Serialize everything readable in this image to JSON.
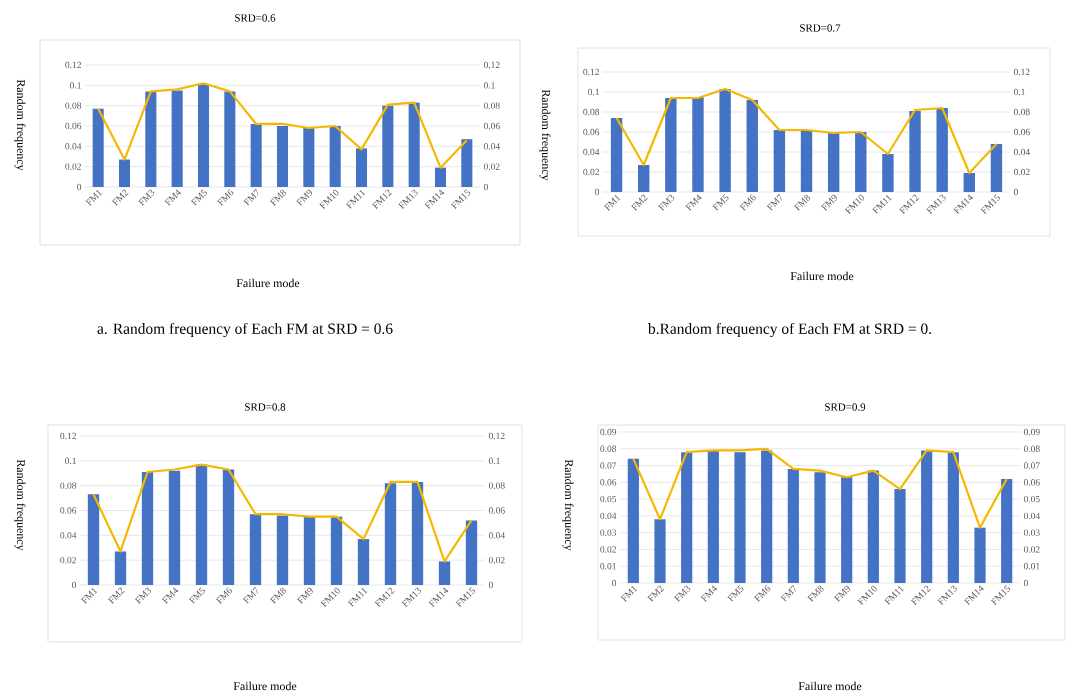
{
  "chart_data": [
    {
      "type": "bar",
      "title": "SRD=0.6",
      "xlabel": "Failure mode",
      "ylabel": "Random frequency",
      "categories": [
        "FM1",
        "FM2",
        "FM3",
        "FM4",
        "FM5",
        "FM6",
        "FM7",
        "FM8",
        "FM9",
        "FM10",
        "FM11",
        "FM12",
        "FM13",
        "FM14",
        "FM15"
      ],
      "series": [
        {
          "color": "#4472c4",
          "values": [
            0.077,
            0.027,
            0.094,
            0.095,
            0.101,
            0.094,
            0.062,
            0.06,
            0.058,
            0.06,
            0.038,
            0.08,
            0.083,
            0.019,
            0.047
          ]
        },
        {
          "type": "line",
          "axis": "y2",
          "color": "#f5b800",
          "values": [
            0.077,
            0.027,
            0.094,
            0.096,
            0.102,
            0.094,
            0.062,
            0.062,
            0.058,
            0.06,
            0.037,
            0.081,
            0.083,
            0.019,
            0.046
          ]
        }
      ],
      "ylim": [
        0,
        0.12
      ],
      "yticks": [
        0,
        0.02,
        0.04,
        0.06,
        0.08,
        0.1,
        0.12
      ],
      "y2lim": [
        0,
        0.12
      ],
      "y2ticks": [
        0,
        0.02,
        0.04,
        0.06,
        0.08,
        0.1,
        0.12
      ],
      "grid": "y",
      "annotations": [
        "a. Random frequency of Each FM at SRD = 0.6"
      ]
    },
    {
      "type": "bar",
      "title": "SRD=0.7",
      "xlabel": "Failure mode",
      "ylabel": "Random frequency",
      "categories": [
        "FM1",
        "FM2",
        "FM3",
        "FM4",
        "FM5",
        "FM6",
        "FM7",
        "FM8",
        "FM9",
        "FM10",
        "FM11",
        "FM12",
        "FM13",
        "FM14",
        "FM15"
      ],
      "series": [
        {
          "color": "#4472c4",
          "values": [
            0.074,
            0.027,
            0.094,
            0.095,
            0.103,
            0.092,
            0.062,
            0.062,
            0.059,
            0.06,
            0.038,
            0.081,
            0.084,
            0.019,
            0.048
          ]
        },
        {
          "type": "line",
          "axis": "y2",
          "color": "#f5b800",
          "values": [
            0.074,
            0.027,
            0.094,
            0.094,
            0.103,
            0.092,
            0.062,
            0.062,
            0.059,
            0.06,
            0.038,
            0.082,
            0.084,
            0.019,
            0.048
          ]
        }
      ],
      "ylim": [
        0,
        0.12
      ],
      "yticks": [
        0,
        0.02,
        0.04,
        0.06,
        0.08,
        0.1,
        0.12
      ],
      "y2lim": [
        0,
        0.12
      ],
      "y2ticks": [
        0,
        0.02,
        0.04,
        0.06,
        0.08,
        0.1,
        0.12
      ],
      "grid": "y",
      "annotations": [
        "b.Random frequency of Each FM at SRD = 0."
      ]
    },
    {
      "type": "bar",
      "title": "SRD=0.8",
      "xlabel": "Failure mode",
      "ylabel": "Random frequency",
      "categories": [
        "FM1",
        "FM2",
        "FM3",
        "FM4",
        "FM5",
        "FM6",
        "FM7",
        "FM8",
        "FM9",
        "FM10",
        "FM11",
        "FM12",
        "FM13",
        "FM14",
        "FM15"
      ],
      "series": [
        {
          "color": "#4472c4",
          "values": [
            0.073,
            0.027,
            0.091,
            0.092,
            0.097,
            0.093,
            0.057,
            0.056,
            0.055,
            0.055,
            0.037,
            0.082,
            0.083,
            0.019,
            0.052
          ]
        },
        {
          "type": "line",
          "axis": "y2",
          "color": "#f5b800",
          "values": [
            0.073,
            0.027,
            0.091,
            0.093,
            0.097,
            0.093,
            0.057,
            0.057,
            0.055,
            0.055,
            0.037,
            0.083,
            0.083,
            0.019,
            0.052
          ]
        }
      ],
      "ylim": [
        0,
        0.12
      ],
      "yticks": [
        0,
        0.02,
        0.04,
        0.06,
        0.08,
        0.1,
        0.12
      ],
      "y2lim": [
        0,
        0.12
      ],
      "y2ticks": [
        0,
        0.02,
        0.04,
        0.06,
        0.08,
        0.1,
        0.12
      ],
      "grid": "y"
    },
    {
      "type": "bar",
      "title": "SRD=0.9",
      "xlabel": "Failure mode",
      "ylabel": "Random frequency",
      "categories": [
        "FM1",
        "FM2",
        "FM3",
        "FM4",
        "FM5",
        "FM6",
        "FM7",
        "FM8",
        "FM9",
        "FM10",
        "FM11",
        "FM12",
        "FM13",
        "FM14",
        "FM15"
      ],
      "series": [
        {
          "color": "#4472c4",
          "values": [
            0.074,
            0.038,
            0.078,
            0.079,
            0.078,
            0.079,
            0.068,
            0.066,
            0.063,
            0.067,
            0.056,
            0.079,
            0.078,
            0.033,
            0.062
          ]
        },
        {
          "type": "line",
          "axis": "y2",
          "color": "#f5b800",
          "values": [
            0.074,
            0.038,
            0.078,
            0.079,
            0.079,
            0.08,
            0.068,
            0.067,
            0.063,
            0.067,
            0.056,
            0.079,
            0.078,
            0.033,
            0.062
          ]
        }
      ],
      "ylim": [
        0,
        0.09
      ],
      "yticks": [
        0,
        0.01,
        0.02,
        0.03,
        0.04,
        0.05,
        0.06,
        0.07,
        0.08,
        0.09
      ],
      "y2lim": [
        0,
        0.09
      ],
      "y2ticks": [
        0,
        0.01,
        0.02,
        0.03,
        0.04,
        0.05,
        0.06,
        0.07,
        0.08,
        0.09
      ],
      "grid": "y"
    }
  ]
}
